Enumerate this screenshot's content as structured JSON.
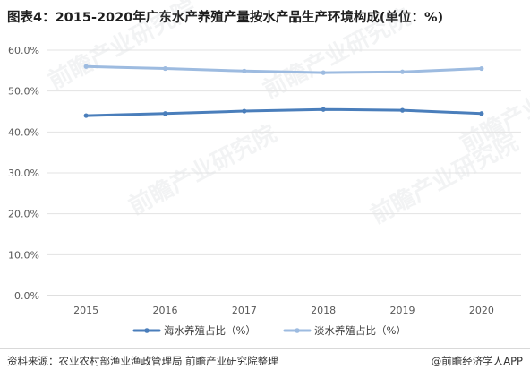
{
  "header": {
    "title": "图表4：2015-2020年广东水产养殖产量按水产品生产环境构成(单位：%)"
  },
  "footer": {
    "source": "资料来源：农业农村部渔业渔政管理局 前瞻产业研究院整理",
    "credit": "@前瞻经济学人APP"
  },
  "watermark": {
    "text": "前瞻产业研究院"
  },
  "chart_data": {
    "type": "line",
    "title": "图表4：2015-2020年广东水产养殖产量按水产品生产环境构成(单位：%)",
    "categories": [
      "2015",
      "2016",
      "2017",
      "2018",
      "2019",
      "2020"
    ],
    "y_ticks": [
      "0.0%",
      "10.0%",
      "20.0%",
      "30.0%",
      "40.0%",
      "50.0%",
      "60.0%"
    ],
    "ylim": [
      0,
      60
    ],
    "grid": true,
    "legend_position": "bottom",
    "series": [
      {
        "name": "海水养殖占比（%）",
        "color": "#4a7ebb",
        "values": [
          44.0,
          44.5,
          45.1,
          45.5,
          45.3,
          44.5
        ]
      },
      {
        "name": "淡水养殖占比（%）",
        "color": "#9dbbe0",
        "values": [
          56.0,
          55.5,
          54.9,
          54.5,
          54.7,
          55.5
        ]
      }
    ]
  }
}
